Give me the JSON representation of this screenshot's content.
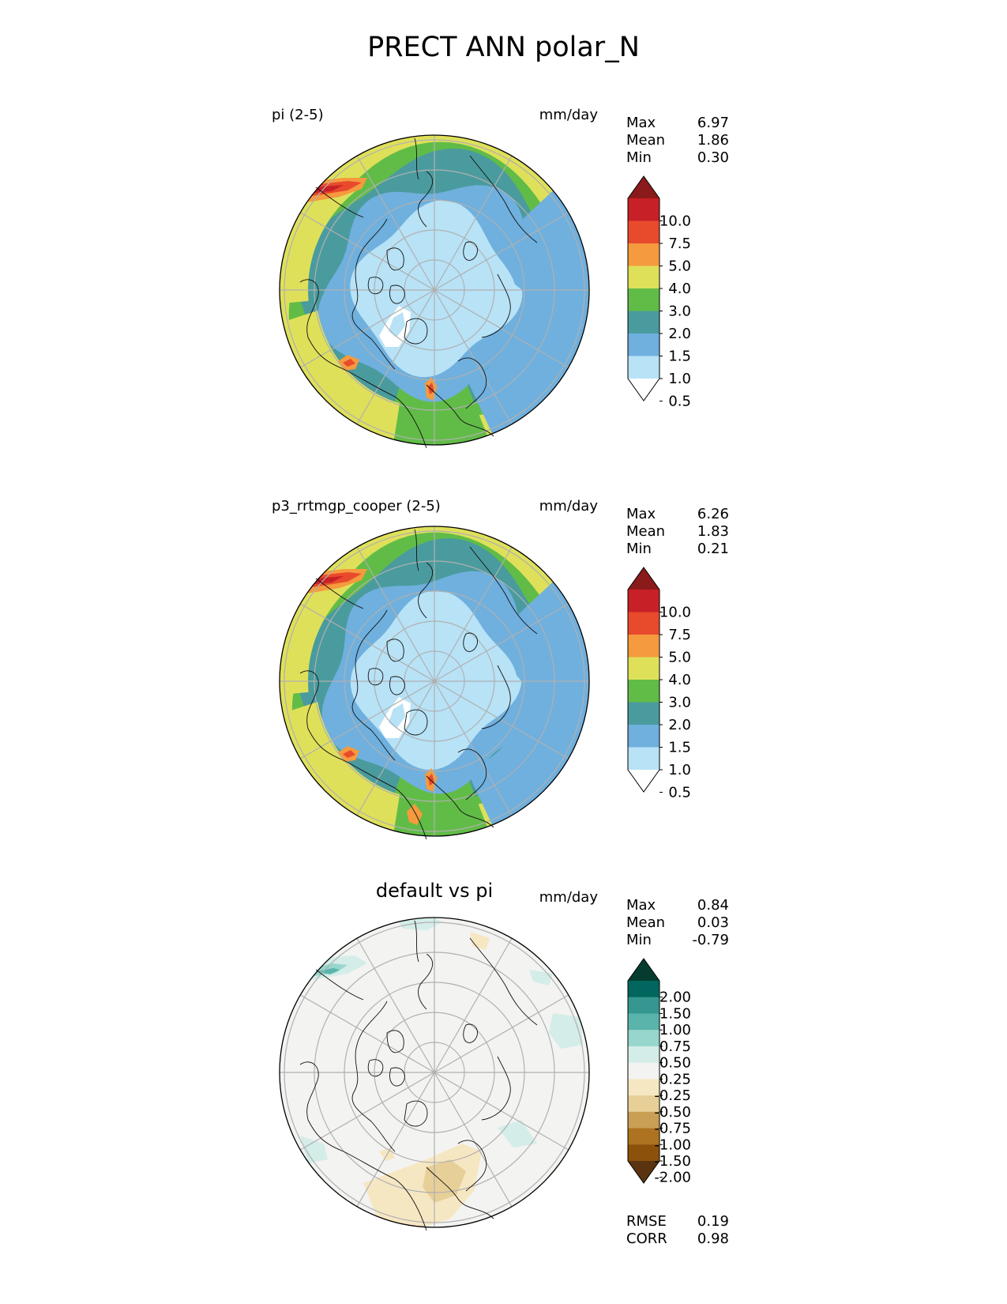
{
  "title": "PRECT ANN polar_N",
  "panels": [
    {
      "left_title": "pi (2-5)",
      "center_title": "",
      "units": "mm/day",
      "stats": [
        {
          "label": "Max",
          "value": "6.97"
        },
        {
          "label": "Mean",
          "value": "1.86"
        },
        {
          "label": "Min",
          "value": "0.30"
        }
      ],
      "colorbar": {
        "ticks": [
          "10.0",
          "7.5",
          "5.0",
          "4.0",
          "3.0",
          "2.0",
          "1.5",
          "1.0",
          "0.5"
        ],
        "colors": [
          "#8b1a1a",
          "#c82027",
          "#e84a2c",
          "#f59a3e",
          "#dfe05a",
          "#61bc47",
          "#4a9b9e",
          "#6fb0de",
          "#b8e2f6",
          "#ffffff"
        ]
      }
    },
    {
      "left_title": "p3_rrtmgp_cooper (2-5)",
      "center_title": "",
      "units": "mm/day",
      "stats": [
        {
          "label": "Max",
          "value": "6.26"
        },
        {
          "label": "Mean",
          "value": "1.83"
        },
        {
          "label": "Min",
          "value": "0.21"
        }
      ],
      "colorbar": {
        "ticks": [
          "10.0",
          "7.5",
          "5.0",
          "4.0",
          "3.0",
          "2.0",
          "1.5",
          "1.0",
          "0.5"
        ],
        "colors": [
          "#8b1a1a",
          "#c82027",
          "#e84a2c",
          "#f59a3e",
          "#dfe05a",
          "#61bc47",
          "#4a9b9e",
          "#6fb0de",
          "#b8e2f6",
          "#ffffff"
        ]
      }
    },
    {
      "left_title": "",
      "center_title": "default vs pi",
      "units": "mm/day",
      "stats": [
        {
          "label": "Max",
          "value": "0.84"
        },
        {
          "label": "Mean",
          "value": "0.03"
        },
        {
          "label": "Min",
          "value": "-0.79"
        }
      ],
      "colorbar": {
        "ticks": [
          "2.00",
          "1.50",
          "1.00",
          "0.75",
          "0.50",
          "0.25",
          "-0.25",
          "-0.50",
          "-0.75",
          "-1.00",
          "-1.50",
          "-2.00"
        ],
        "colors": [
          "#063c30",
          "#01665e",
          "#35978f",
          "#5ab4ac",
          "#97d6cc",
          "#d4ede9",
          "#f3f3f1",
          "#f6e7c3",
          "#e7cf98",
          "#c99e55",
          "#ae7320",
          "#8c510a",
          "#5a3410"
        ]
      },
      "footer": [
        {
          "label": "RMSE",
          "value": "0.19"
        },
        {
          "label": "CORR",
          "value": "0.98"
        }
      ]
    }
  ]
}
